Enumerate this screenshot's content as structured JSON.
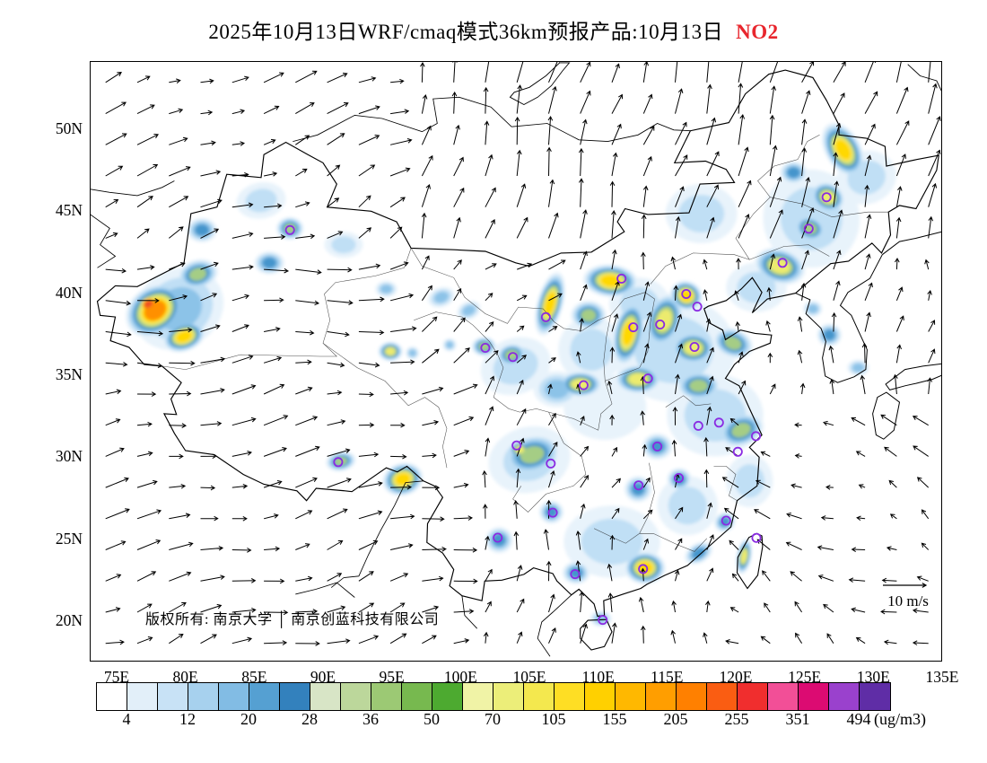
{
  "title": {
    "main": "2025年10月13日WRF/cmaq模式36km预报产品:10月13日",
    "pollutant": "NO2",
    "pollutant_color": "#e8262d"
  },
  "map": {
    "copyright": "版权所有: 南京大学 │ 南京创蓝科技有限公司",
    "wind_reference_label": "10 m/s"
  },
  "axes": {
    "lat_labels": [
      "50N",
      "45N",
      "40N",
      "35N",
      "30N",
      "25N",
      "20N"
    ],
    "lon_labels": [
      "75E",
      "80E",
      "85E",
      "90E",
      "95E",
      "100E",
      "105E",
      "110E",
      "115E",
      "120E",
      "125E",
      "130E",
      "135E"
    ]
  },
  "colorbar": {
    "tick_labels": [
      "4",
      "12",
      "20",
      "28",
      "36",
      "50",
      "70",
      "105",
      "155",
      "205",
      "255",
      "351",
      "494"
    ],
    "unit": "(ug/m3)",
    "cell_colors": [
      "#ffffff",
      "#e2eff9",
      "#c8e2f6",
      "#a7d1ee",
      "#82bce4",
      "#55a0d2",
      "#3381bd",
      "#d8e5c6",
      "#bcd79b",
      "#9cc974",
      "#77b94f",
      "#4daa30",
      "#f0f3a6",
      "#ecee79",
      "#f4e84e",
      "#fede24",
      "#ffd000",
      "#ffb800",
      "#ff9e00",
      "#ff8000",
      "#fa5d12",
      "#f02e2e",
      "#f24f97",
      "#dc0b72",
      "#9a41cd",
      "#5f2da6"
    ]
  },
  "chart_data": {
    "type": "heatmap",
    "subtype": "filled-contour-map-with-wind-vectors",
    "title": "2025年10月13日WRF/cmaq模式36km预报产品:10月13日 NO2",
    "variable": "NO2",
    "unit": "ug/m3",
    "model": "WRF/cmaq 36km",
    "valid_date_label": "10月13日",
    "lon_range": [
      73,
      135
    ],
    "lat_range": [
      17.5,
      54.1
    ],
    "lon_ticks_deg": [
      75,
      80,
      85,
      90,
      95,
      100,
      105,
      110,
      115,
      120,
      125,
      130,
      135
    ],
    "lat_ticks_deg": [
      20,
      25,
      30,
      35,
      40,
      45,
      50
    ],
    "contour_levels": [
      4,
      12,
      20,
      28,
      36,
      50,
      70,
      105,
      155,
      205,
      255,
      351,
      494
    ],
    "wind_reference_ms": 10,
    "legend_position": "bottom",
    "grid": false,
    "plume_ramp_colors": [
      "#e8f3fb",
      "#c0dff5",
      "#8cc3e8",
      "#4595cc",
      "#a5cd85",
      "#eceb6e",
      "#ffd800",
      "#ff9000",
      "#ef5020"
    ],
    "plume_format": [
      "lon",
      "lat",
      "rx_deg",
      "ry_deg",
      "rotation_deg",
      "peak_rank"
    ],
    "plumes": [
      [
        77.8,
        38.9,
        2.3,
        1.5,
        -35,
        8
      ],
      [
        77.3,
        39.3,
        0.95,
        0.6,
        -35,
        9
      ],
      [
        79.9,
        37.3,
        1.6,
        0.9,
        -20,
        7
      ],
      [
        79.5,
        39.0,
        3.4,
        2.4,
        -30,
        3
      ],
      [
        80.9,
        41.1,
        1.5,
        0.9,
        -15,
        5
      ],
      [
        86.1,
        41.8,
        1.1,
        0.7,
        0,
        4
      ],
      [
        81.2,
        43.8,
        1.1,
        0.75,
        0,
        4
      ],
      [
        87.6,
        43.9,
        1.0,
        0.7,
        0,
        5
      ],
      [
        85.5,
        45.6,
        1.8,
        1.1,
        -10,
        2
      ],
      [
        91.5,
        42.9,
        1.4,
        0.8,
        0,
        2
      ],
      [
        94.6,
        40.2,
        0.8,
        0.5,
        0,
        3
      ],
      [
        98.6,
        39.7,
        1.0,
        0.6,
        -20,
        3
      ],
      [
        100.6,
        38.9,
        0.9,
        0.55,
        -25,
        3
      ],
      [
        94.9,
        36.4,
        0.9,
        0.6,
        0,
        6
      ],
      [
        96.5,
        36.3,
        0.5,
        0.4,
        0,
        3
      ],
      [
        99.2,
        36.8,
        0.5,
        0.4,
        0,
        3
      ],
      [
        101.7,
        36.7,
        0.9,
        0.6,
        0,
        5
      ],
      [
        103.7,
        36.2,
        1.1,
        0.7,
        -10,
        5
      ],
      [
        104.0,
        35.5,
        2.6,
        1.7,
        -20,
        2
      ],
      [
        106.5,
        39.3,
        0.95,
        2.0,
        15,
        7
      ],
      [
        109.3,
        38.6,
        1.3,
        0.9,
        0,
        5
      ],
      [
        109.5,
        36.5,
        2.4,
        2.0,
        0,
        2
      ],
      [
        110.9,
        40.7,
        2.0,
        1.0,
        5,
        7
      ],
      [
        112.2,
        37.5,
        1.1,
        2.0,
        12,
        7
      ],
      [
        113.0,
        39.3,
        2.2,
        1.6,
        0,
        2
      ],
      [
        108.7,
        34.4,
        1.6,
        0.8,
        0,
        6
      ],
      [
        107.0,
        34.1,
        1.7,
        1.1,
        0,
        3
      ],
      [
        112.9,
        34.7,
        1.7,
        0.9,
        0,
        6
      ],
      [
        114.8,
        38.3,
        1.3,
        1.7,
        18,
        6
      ],
      [
        116.4,
        39.8,
        1.2,
        0.9,
        25,
        7
      ],
      [
        116.9,
        36.6,
        1.6,
        1.0,
        0,
        6
      ],
      [
        119.8,
        36.9,
        1.5,
        0.9,
        20,
        5
      ],
      [
        117.3,
        34.3,
        1.6,
        0.9,
        0,
        5
      ],
      [
        120.4,
        31.6,
        1.7,
        1.0,
        -20,
        5
      ],
      [
        115.5,
        36.5,
        4.5,
        3.2,
        0,
        2
      ],
      [
        118.5,
        32.5,
        3.5,
        2.5,
        0,
        2
      ],
      [
        121.5,
        40.3,
        2.2,
        1.5,
        0,
        2
      ],
      [
        114.3,
        30.6,
        1.1,
        0.8,
        0,
        4
      ],
      [
        112.9,
        28.0,
        1.0,
        0.8,
        0,
        4
      ],
      [
        115.9,
        28.6,
        0.9,
        0.7,
        0,
        4
      ],
      [
        116.5,
        27.0,
        2.2,
        1.8,
        0,
        2
      ],
      [
        121.0,
        28.5,
        1.7,
        1.6,
        0,
        2
      ],
      [
        110.5,
        33.0,
        3.0,
        2.0,
        0,
        1
      ],
      [
        111.0,
        24.8,
        3.5,
        2.2,
        0,
        2
      ],
      [
        113.4,
        23.2,
        1.5,
        1.0,
        0,
        7
      ],
      [
        108.4,
        22.9,
        1.0,
        0.7,
        0,
        4
      ],
      [
        106.6,
        26.6,
        0.9,
        0.7,
        0,
        4
      ],
      [
        102.8,
        24.9,
        1.0,
        0.8,
        0,
        4
      ],
      [
        119.2,
        26.0,
        0.8,
        0.6,
        -30,
        4
      ],
      [
        117.3,
        24.1,
        1.1,
        0.6,
        -30,
        4
      ],
      [
        120.6,
        23.9,
        0.55,
        1.1,
        10,
        6
      ],
      [
        110.2,
        20.1,
        0.8,
        0.5,
        0,
        3
      ],
      [
        105.2,
        30.1,
        2.1,
        1.2,
        -15,
        5
      ],
      [
        104.3,
        30.4,
        0.8,
        0.55,
        0,
        6
      ],
      [
        105.0,
        29.8,
        3.0,
        2.0,
        -15,
        2
      ],
      [
        95.8,
        28.6,
        1.5,
        1.0,
        -15,
        7
      ],
      [
        91.3,
        29.7,
        1.1,
        0.6,
        -10,
        5
      ],
      [
        123.2,
        41.6,
        1.9,
        1.1,
        15,
        6
      ],
      [
        125.4,
        43.9,
        1.2,
        0.8,
        20,
        5
      ],
      [
        126.7,
        45.8,
        1.3,
        0.9,
        30,
        6
      ],
      [
        127.8,
        48.7,
        1.3,
        1.8,
        -30,
        7
      ],
      [
        124.2,
        47.3,
        1.0,
        0.7,
        0,
        4
      ],
      [
        125.5,
        44.5,
        3.5,
        3.0,
        -20,
        2
      ],
      [
        129.5,
        47.0,
        2.2,
        1.6,
        -20,
        2
      ],
      [
        117.5,
        44.8,
        2.6,
        1.8,
        0,
        2
      ],
      [
        126.8,
        37.4,
        0.9,
        0.7,
        0,
        4
      ],
      [
        128.9,
        35.4,
        0.8,
        0.5,
        0,
        3
      ],
      [
        125.6,
        39.0,
        0.7,
        0.5,
        0,
        3
      ]
    ],
    "city_marker_color": "#8a2be2",
    "city_markers_lonlat": [
      [
        87.6,
        43.8
      ],
      [
        91.1,
        29.65
      ],
      [
        101.8,
        36.62
      ],
      [
        103.8,
        36.06
      ],
      [
        106.2,
        38.49
      ],
      [
        111.7,
        40.84
      ],
      [
        126.6,
        45.8
      ],
      [
        125.3,
        43.88
      ],
      [
        123.4,
        41.8
      ],
      [
        116.4,
        39.9
      ],
      [
        117.2,
        39.13
      ],
      [
        114.5,
        38.04
      ],
      [
        112.55,
        37.87
      ],
      [
        117.0,
        36.67
      ],
      [
        113.62,
        34.75
      ],
      [
        108.94,
        34.34
      ],
      [
        117.28,
        31.86
      ],
      [
        118.78,
        32.06
      ],
      [
        121.47,
        31.23
      ],
      [
        120.15,
        30.28
      ],
      [
        114.3,
        30.6
      ],
      [
        104.07,
        30.67
      ],
      [
        106.55,
        29.56
      ],
      [
        112.94,
        28.23
      ],
      [
        115.86,
        28.68
      ],
      [
        106.7,
        26.57
      ],
      [
        102.7,
        25.04
      ],
      [
        119.3,
        26.08
      ],
      [
        121.5,
        25.03
      ],
      [
        113.26,
        23.13
      ],
      [
        108.32,
        22.82
      ],
      [
        110.33,
        20.03
      ]
    ]
  }
}
